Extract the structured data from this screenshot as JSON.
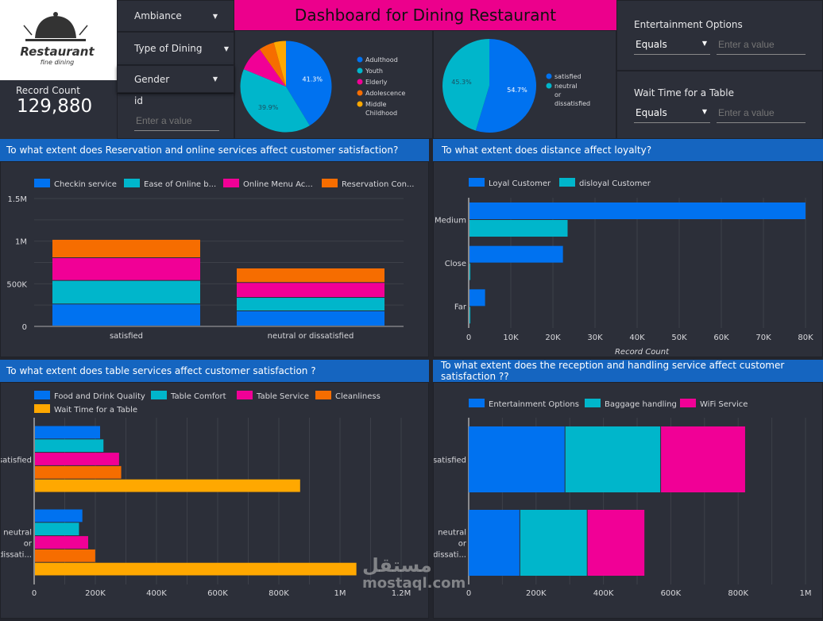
{
  "colors": {
    "blue": "#0072f0",
    "teal": "#00b6cb",
    "pink": "#f10096",
    "orange": "#f66d00",
    "yellow": "#ffa800",
    "header": "#1565c0",
    "title_bg": "#ec008c"
  },
  "logo": {
    "text": "Restaurant",
    "subtext": "fine dining",
    "icon": "cloche-icon"
  },
  "scorecard": {
    "label": "Record Count",
    "value": "129,880"
  },
  "filters": {
    "ambiance": "Ambiance",
    "type_of_dining": "Type of Dining",
    "gender": "Gender",
    "id_label": "id",
    "id_placeholder": "Enter a value",
    "entertainment": {
      "label": "Entertainment Options",
      "operator": "Equals",
      "placeholder": "Enter a value"
    },
    "wait_time": {
      "label": "Wait Time for a Table",
      "operator": "Equals",
      "placeholder": "Enter a value"
    }
  },
  "title": "Dashboard for Dining Restaurant",
  "headers": {
    "reservation": "To what extent does  Reservation and online services  affect customer satisfaction?",
    "distance": "To what extent does distance affect loyalty?",
    "table": "To what extent does table services affect customer satisfaction ?",
    "reception": "To what extent does the reception and handling service affect customer satisfaction ??"
  },
  "watermark": {
    "arabic": "مستقل",
    "latin": "mostaql.com"
  },
  "chart_data": [
    {
      "type": "pie",
      "slices": [
        {
          "name": "Adulthood",
          "value": 41.3,
          "label": "41.3%"
        },
        {
          "name": "Youth",
          "value": 39.9,
          "label": "39.9%"
        },
        {
          "name": "Elderly",
          "value": 9.0
        },
        {
          "name": "Adolescence",
          "value": 5.5
        },
        {
          "name": "Middle Childhood",
          "value": 4.3
        }
      ],
      "colors": [
        "#0072f0",
        "#00b6cb",
        "#f10096",
        "#f66d00",
        "#ffa800"
      ],
      "legend": "right"
    },
    {
      "type": "pie",
      "slices": [
        {
          "name": "satisfied",
          "value": 54.7,
          "label": "54.7%"
        },
        {
          "name": "neutral or dissatisfied",
          "value": 45.3,
          "label": "45.3%"
        }
      ],
      "colors": [
        "#0072f0",
        "#00b6cb"
      ],
      "legend": "right"
    },
    {
      "type": "bar",
      "orientation": "vertical",
      "stacked": true,
      "categories": [
        "satisfied",
        "neutral or dissatisfied"
      ],
      "series": [
        {
          "name": "Checkin service",
          "values": [
            258000,
            177000
          ]
        },
        {
          "name": "Ease of Online b...",
          "values": [
            276000,
            158000
          ]
        },
        {
          "name": "Online Menu Ac...",
          "values": [
            267000,
            175000
          ]
        },
        {
          "name": "Reservation Con...",
          "values": [
            215000,
            170000
          ]
        }
      ],
      "ylim": [
        0,
        1500000
      ],
      "yticks": [
        "0",
        "500K",
        "1M",
        "1.5M"
      ],
      "ytick_values": [
        0,
        500000,
        1000000,
        1500000
      ],
      "grid": true,
      "legend": "top"
    },
    {
      "type": "bar",
      "orientation": "horizontal",
      "stacked": false,
      "categories": [
        "Medium",
        "Close",
        "Far"
      ],
      "series": [
        {
          "name": "Loyal Customer",
          "values": [
            79800,
            22200,
            3700
          ]
        },
        {
          "name": "disloyal Customer",
          "values": [
            23300,
            200,
            200
          ]
        }
      ],
      "xlim": [
        0,
        80000
      ],
      "xticks": [
        "0",
        "10K",
        "20K",
        "30K",
        "40K",
        "50K",
        "60K",
        "70K",
        "80K"
      ],
      "xtick_values": [
        0,
        10000,
        20000,
        30000,
        40000,
        50000,
        60000,
        70000,
        80000
      ],
      "xlabel": "Record Count",
      "grid": true,
      "legend": "top"
    },
    {
      "type": "bar",
      "orientation": "horizontal",
      "stacked": false,
      "categories": [
        "satisfied",
        "neutral or dissati..."
      ],
      "series": [
        {
          "name": "Food and Drink Quality",
          "values": [
            213000,
            155000
          ]
        },
        {
          "name": "Table Comfort",
          "values": [
            224000,
            144000
          ]
        },
        {
          "name": "Table Service",
          "values": [
            275000,
            174000
          ]
        },
        {
          "name": "Cleanliness",
          "values": [
            282000,
            197000
          ]
        },
        {
          "name": "Wait Time for a Table",
          "values": [
            867000,
            1051000
          ]
        }
      ],
      "xlim": [
        0,
        1200000
      ],
      "xticks": [
        "0",
        "200K",
        "400K",
        "600K",
        "800K",
        "1M",
        "1.2M"
      ],
      "xtick_values": [
        0,
        200000,
        400000,
        600000,
        800000,
        1000000,
        1200000
      ],
      "grid": true,
      "legend": "top"
    },
    {
      "type": "bar",
      "orientation": "horizontal",
      "stacked": true,
      "categories": [
        "satisfied",
        "neutral or dissati..."
      ],
      "series": [
        {
          "name": "Entertainment Options",
          "values": [
            287000,
            153000
          ]
        },
        {
          "name": "Baggage handling",
          "values": [
            284000,
            200000
          ]
        },
        {
          "name": "WiFi Service",
          "values": [
            252000,
            171000
          ]
        }
      ],
      "xlim": [
        0,
        1000000
      ],
      "xticks": [
        "0",
        "200K",
        "400K",
        "600K",
        "800K",
        "1M"
      ],
      "xtick_values": [
        0,
        200000,
        400000,
        600000,
        800000,
        1000000
      ],
      "grid": true,
      "legend": "top"
    }
  ]
}
